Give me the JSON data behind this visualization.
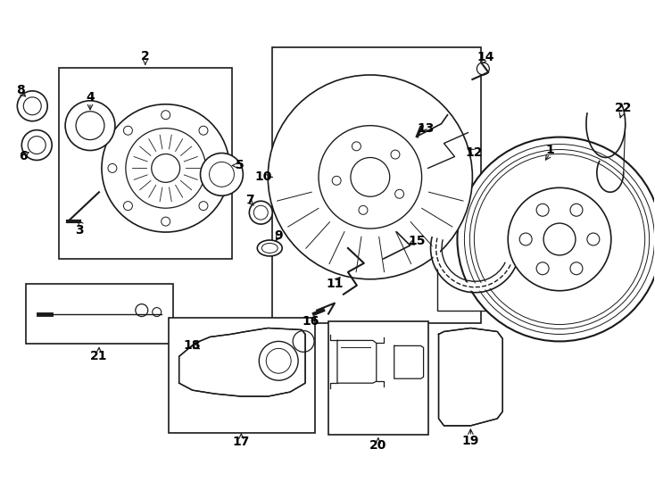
{
  "bg_color": "#ffffff",
  "line_color": "#1a1a1a",
  "fig_width": 7.34,
  "fig_height": 5.4,
  "dpi": 100,
  "label_fontsize": 10,
  "label_fontweight": "bold"
}
